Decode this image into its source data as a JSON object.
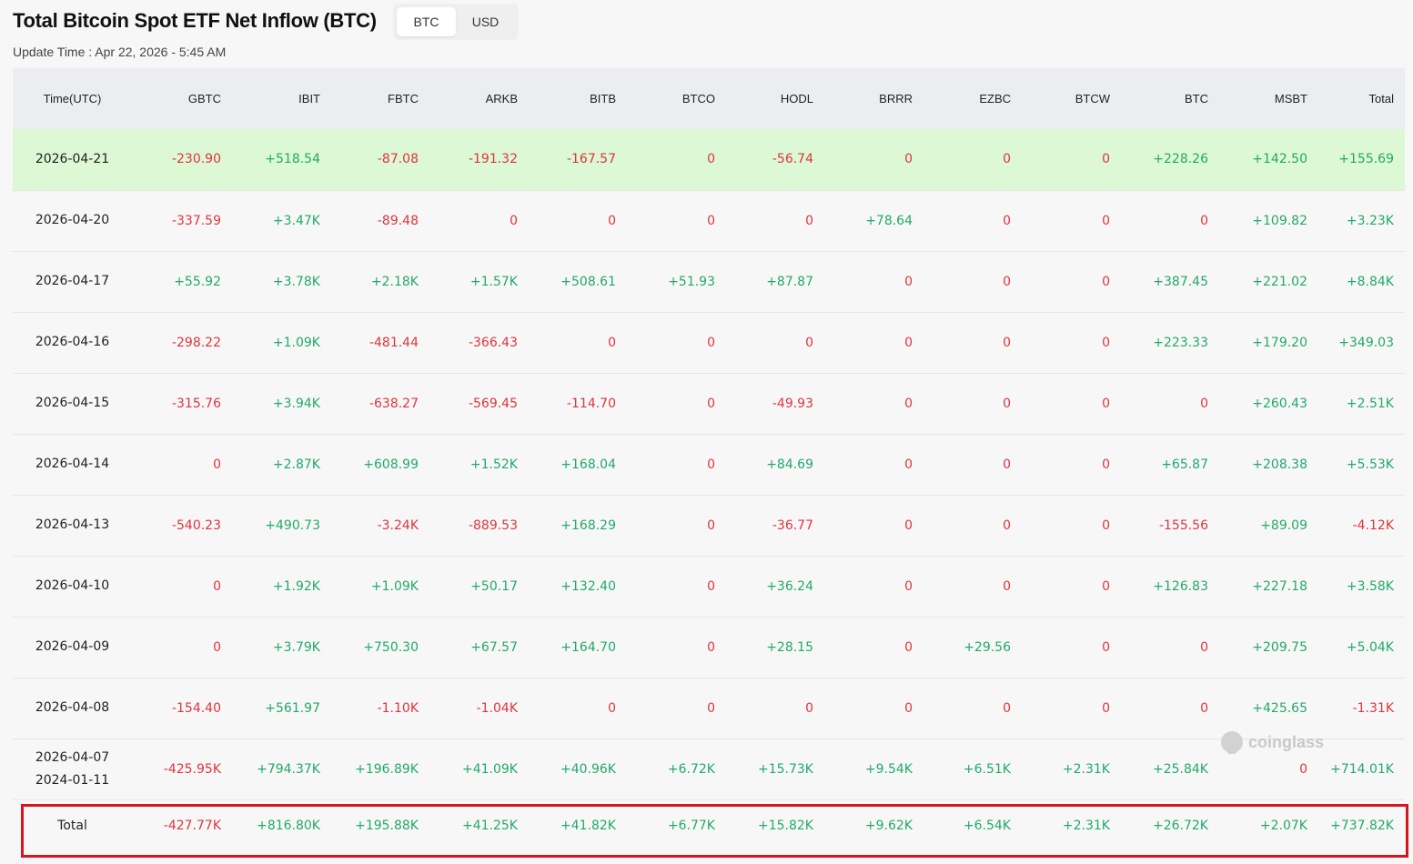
{
  "header": {
    "title": "Total Bitcoin Spot ETF Net Inflow (BTC)",
    "unit_options": [
      "BTC",
      "USD"
    ],
    "active_unit": "BTC",
    "update_time": "Update Time : Apr 22, 2026 - 5:45 AM"
  },
  "table": {
    "columns": [
      "Time(UTC)",
      "GBTC",
      "IBIT",
      "FBTC",
      "ARKB",
      "BITB",
      "BTCO",
      "HODL",
      "BRRR",
      "EZBC",
      "BTCW",
      "BTC",
      "MSBT",
      "Total"
    ],
    "rows": [
      {
        "date": "2026-04-21",
        "highlight": true,
        "values": [
          "-230.90",
          "+518.54",
          "-87.08",
          "-191.32",
          "-167.57",
          "0",
          "-56.74",
          "0",
          "0",
          "0",
          "+228.26",
          "+142.50",
          "+155.69"
        ]
      },
      {
        "date": "2026-04-20",
        "values": [
          "-337.59",
          "+3.47K",
          "-89.48",
          "0",
          "0",
          "0",
          "0",
          "+78.64",
          "0",
          "0",
          "0",
          "+109.82",
          "+3.23K"
        ]
      },
      {
        "date": "2026-04-17",
        "values": [
          "+55.92",
          "+3.78K",
          "+2.18K",
          "+1.57K",
          "+508.61",
          "+51.93",
          "+87.87",
          "0",
          "0",
          "0",
          "+387.45",
          "+221.02",
          "+8.84K"
        ]
      },
      {
        "date": "2026-04-16",
        "values": [
          "-298.22",
          "+1.09K",
          "-481.44",
          "-366.43",
          "0",
          "0",
          "0",
          "0",
          "0",
          "0",
          "+223.33",
          "+179.20",
          "+349.03"
        ]
      },
      {
        "date": "2026-04-15",
        "values": [
          "-315.76",
          "+3.94K",
          "-638.27",
          "-569.45",
          "-114.70",
          "0",
          "-49.93",
          "0",
          "0",
          "0",
          "0",
          "+260.43",
          "+2.51K"
        ]
      },
      {
        "date": "2026-04-14",
        "values": [
          "0",
          "+2.87K",
          "+608.99",
          "+1.52K",
          "+168.04",
          "0",
          "+84.69",
          "0",
          "0",
          "0",
          "+65.87",
          "+208.38",
          "+5.53K"
        ]
      },
      {
        "date": "2026-04-13",
        "values": [
          "-540.23",
          "+490.73",
          "-3.24K",
          "-889.53",
          "+168.29",
          "0",
          "-36.77",
          "0",
          "0",
          "0",
          "-155.56",
          "+89.09",
          "-4.12K"
        ]
      },
      {
        "date": "2026-04-10",
        "values": [
          "0",
          "+1.92K",
          "+1.09K",
          "+50.17",
          "+132.40",
          "0",
          "+36.24",
          "0",
          "0",
          "0",
          "+126.83",
          "+227.18",
          "+3.58K"
        ]
      },
      {
        "date": "2026-04-09",
        "values": [
          "0",
          "+3.79K",
          "+750.30",
          "+67.57",
          "+164.70",
          "0",
          "+28.15",
          "0",
          "+29.56",
          "0",
          "0",
          "+209.75",
          "+5.04K"
        ]
      },
      {
        "date": "2026-04-08",
        "values": [
          "-154.40",
          "+561.97",
          "-1.10K",
          "-1.04K",
          "0",
          "0",
          "0",
          "0",
          "0",
          "0",
          "0",
          "+425.65",
          "-1.31K"
        ]
      },
      {
        "date": "2026-04-07",
        "date2": "2024-01-11",
        "values": [
          "-425.95K",
          "+794.37K",
          "+196.89K",
          "+41.09K",
          "+40.96K",
          "+6.72K",
          "+15.73K",
          "+9.54K",
          "+6.51K",
          "+2.31K",
          "+25.84K",
          "0",
          "+714.01K"
        ]
      }
    ],
    "total": {
      "label": "Total",
      "values": [
        "-427.77K",
        "+816.80K",
        "+195.88K",
        "+41.25K",
        "+41.82K",
        "+6.77K",
        "+15.82K",
        "+9.62K",
        "+6.54K",
        "+2.31K",
        "+26.72K",
        "+2.07K",
        "+737.82K"
      ]
    }
  },
  "watermark": {
    "text": "coinglass",
    "icon": "coinglass-logo-icon"
  },
  "colors": {
    "positive": "#23a96b",
    "negative": "#e0353e",
    "highlight_row": "#dcf8d5",
    "header_bg": "#ebedf0",
    "total_border": "#d5151f"
  }
}
